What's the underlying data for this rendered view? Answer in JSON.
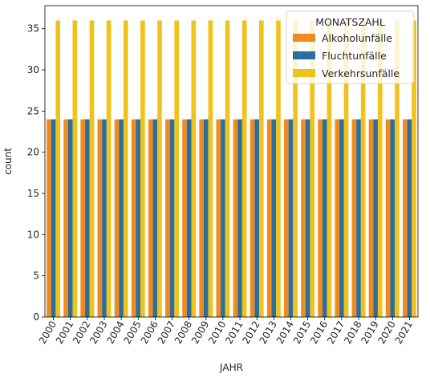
{
  "chart_data": {
    "type": "bar",
    "xlabel": "JAHR",
    "ylabel": "count",
    "ylim": [
      0,
      37.8
    ],
    "yticks": [
      0,
      5,
      10,
      15,
      20,
      25,
      30,
      35
    ],
    "categories": [
      "2000",
      "2001",
      "2002",
      "2003",
      "2004",
      "2005",
      "2006",
      "2007",
      "2008",
      "2009",
      "2010",
      "2011",
      "2012",
      "2013",
      "2014",
      "2015",
      "2016",
      "2017",
      "2018",
      "2019",
      "2020",
      "2021"
    ],
    "grid": false,
    "legend": {
      "title": "MONATSZAHL",
      "placement": "top-right"
    },
    "series": [
      {
        "name": "Alkoholunfälle",
        "color": "#f28b1f",
        "values": [
          24,
          24,
          24,
          24,
          24,
          24,
          24,
          24,
          24,
          24,
          24,
          24,
          24,
          24,
          24,
          24,
          24,
          24,
          24,
          24,
          24,
          24
        ]
      },
      {
        "name": "Fluchtunfälle",
        "color": "#2a6f9e",
        "values": [
          24,
          24,
          24,
          24,
          24,
          24,
          24,
          24,
          24,
          24,
          24,
          24,
          24,
          24,
          24,
          24,
          24,
          24,
          24,
          24,
          24,
          24
        ]
      },
      {
        "name": "Verkehrsunfälle",
        "color": "#f1c21b",
        "values": [
          36,
          36,
          36,
          36,
          36,
          36,
          36,
          36,
          36,
          36,
          36,
          36,
          36,
          36,
          36,
          36,
          36,
          36,
          36,
          36,
          36,
          36
        ]
      }
    ]
  }
}
